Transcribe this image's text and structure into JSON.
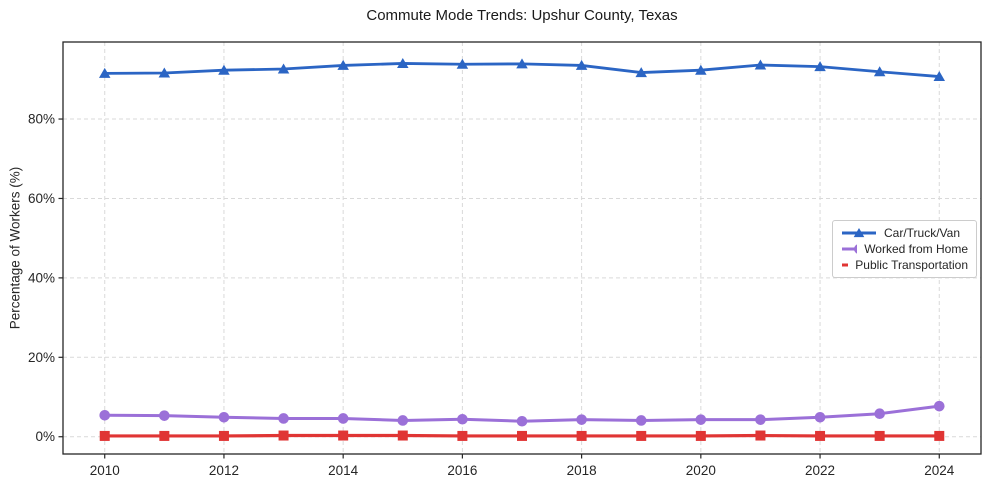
{
  "figure": {
    "title": "Commute Mode Trends: Upshur County, Texas"
  },
  "chart_data": {
    "type": "line",
    "title": "Commute Mode Trends: Upshur County, Texas",
    "xlabel": "",
    "ylabel": "Percentage of Workers (%)",
    "x": [
      2010,
      2011,
      2012,
      2013,
      2014,
      2015,
      2016,
      2017,
      2018,
      2019,
      2020,
      2021,
      2022,
      2023,
      2024
    ],
    "series": [
      {
        "name": "Car/Truck/Van",
        "color": "#2b65c4",
        "marker": "triangle",
        "line_width": 2.8,
        "values": [
          91.5,
          91.6,
          92.3,
          92.6,
          93.5,
          94.0,
          93.8,
          93.9,
          93.5,
          91.7,
          92.3,
          93.6,
          93.2,
          91.9,
          90.7
        ]
      },
      {
        "name": "Worked from Home",
        "color": "#9b70d8",
        "marker": "circle",
        "line_width": 3,
        "values": [
          5.4,
          5.3,
          4.9,
          4.6,
          4.6,
          4.1,
          4.4,
          3.9,
          4.3,
          4.1,
          4.3,
          4.3,
          4.9,
          5.8,
          7.7
        ]
      },
      {
        "name": "Public Transportation",
        "color": "#e03534",
        "marker": "square",
        "line_width": 3.2,
        "values": [
          0.2,
          0.2,
          0.2,
          0.3,
          0.3,
          0.3,
          0.2,
          0.2,
          0.2,
          0.2,
          0.2,
          0.3,
          0.2,
          0.2,
          0.2
        ]
      }
    ],
    "xticks": [
      2010,
      2012,
      2014,
      2016,
      2018,
      2020,
      2022,
      2024
    ],
    "yticks": [
      0,
      20,
      40,
      60,
      80
    ],
    "ytick_labels": [
      "0%",
      "20%",
      "40%",
      "60%",
      "80%"
    ],
    "xlim": [
      2009.3,
      2024.7
    ],
    "ylim": [
      -4.35,
      99.4
    ],
    "grid": true,
    "grid_style": "dashed",
    "legend_position": "center-right"
  }
}
